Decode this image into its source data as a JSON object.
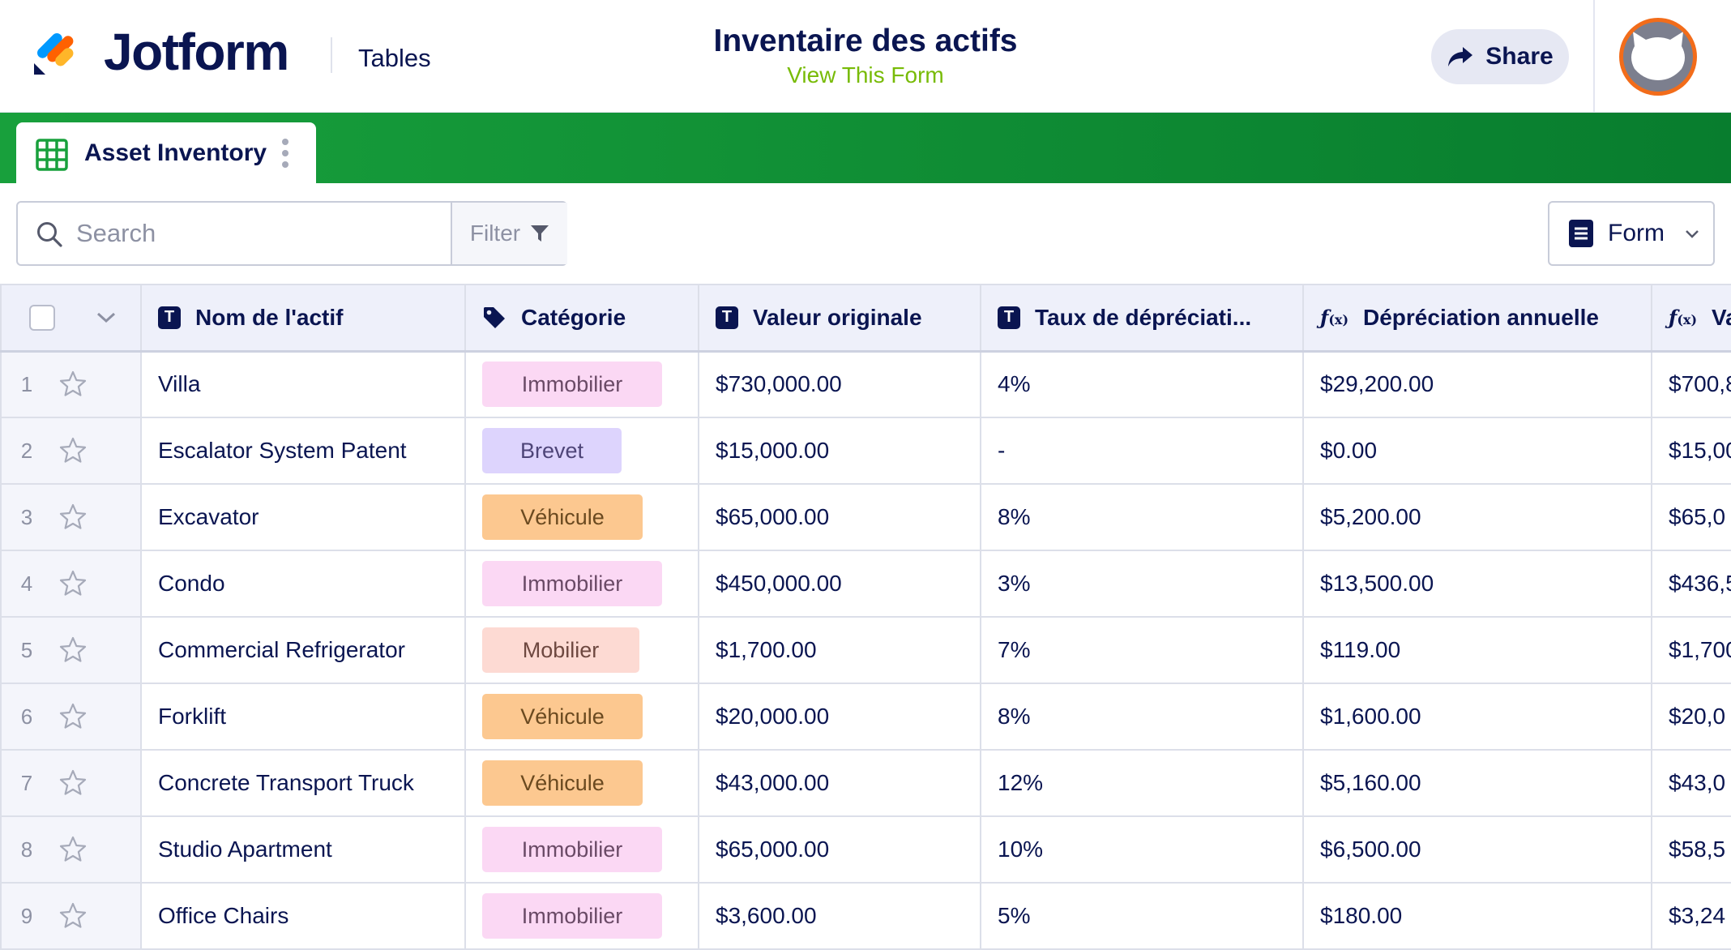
{
  "header": {
    "brand": "Jotform",
    "section": "Tables",
    "form_title": "Inventaire des actifs",
    "view_form_link": "View This Form",
    "share_label": "Share"
  },
  "tabs": [
    {
      "label": "Asset Inventory",
      "icon": "grid-table-icon",
      "active": true
    }
  ],
  "toolbar": {
    "search_placeholder": "Search",
    "filter_label": "Filter",
    "view_selector_label": "Form"
  },
  "colors": {
    "brand_navy": "#0a1551",
    "accent_green": "#78bb07",
    "tabbar_green": "#12913a",
    "avatar_ring": "#f26c1a",
    "pill_immobilier": "#fbd8f4",
    "pill_brevet": "#ddd4fd",
    "pill_vehicule": "#fcc890",
    "pill_mobilier": "#fddad3"
  },
  "table": {
    "columns": [
      {
        "label": "Nom de l'actif",
        "type": "text"
      },
      {
        "label": "Catégorie",
        "type": "tag"
      },
      {
        "label": "Valeur originale",
        "type": "text"
      },
      {
        "label": "Taux de dépréciati...",
        "type": "text"
      },
      {
        "label": "Dépréciation annuelle",
        "type": "formula"
      },
      {
        "label": "Va",
        "type": "formula"
      }
    ],
    "rows": [
      {
        "num": "1",
        "name": "Villa",
        "category": "Immobilier",
        "original_value": "$730,000.00",
        "rate": "4%",
        "annual_depreciation": "$29,200.00",
        "value": "$700,8"
      },
      {
        "num": "2",
        "name": "Escalator System Patent",
        "category": "Brevet",
        "original_value": "$15,000.00",
        "rate": "-",
        "annual_depreciation": "$0.00",
        "value": "$15,00"
      },
      {
        "num": "3",
        "name": "Excavator",
        "category": "Véhicule",
        "original_value": "$65,000.00",
        "rate": "8%",
        "annual_depreciation": "$5,200.00",
        "value": "$65,0"
      },
      {
        "num": "4",
        "name": "Condo",
        "category": "Immobilier",
        "original_value": "$450,000.00",
        "rate": "3%",
        "annual_depreciation": "$13,500.00",
        "value": "$436,5"
      },
      {
        "num": "5",
        "name": "Commercial Refrigerator",
        "category": "Mobilier",
        "original_value": "$1,700.00",
        "rate": "7%",
        "annual_depreciation": "$119.00",
        "value": "$1,700"
      },
      {
        "num": "6",
        "name": "Forklift",
        "category": "Véhicule",
        "original_value": "$20,000.00",
        "rate": "8%",
        "annual_depreciation": "$1,600.00",
        "value": "$20,0"
      },
      {
        "num": "7",
        "name": "Concrete Transport Truck",
        "category": "Véhicule",
        "original_value": "$43,000.00",
        "rate": "12%",
        "annual_depreciation": "$5,160.00",
        "value": "$43,0"
      },
      {
        "num": "8",
        "name": "Studio Apartment",
        "category": "Immobilier",
        "original_value": "$65,000.00",
        "rate": "10%",
        "annual_depreciation": "$6,500.00",
        "value": "$58,5"
      },
      {
        "num": "9",
        "name": "Office Chairs",
        "category": "Immobilier",
        "original_value": "$3,600.00",
        "rate": "5%",
        "annual_depreciation": "$180.00",
        "value": "$3,24"
      }
    ]
  }
}
